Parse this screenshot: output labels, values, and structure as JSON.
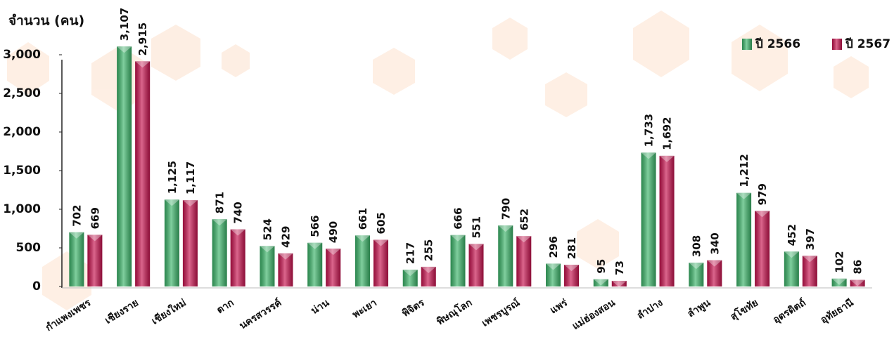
{
  "chart_data": {
    "type": "bar",
    "y_label": "จำนวน (คน)",
    "categories": [
      "กำแพงเพชร",
      "เชียงราย",
      "เชียงใหม่",
      "ตาก",
      "นครสวรรค์",
      "น่าน",
      "พะเยา",
      "พิจิตร",
      "พิษณุโลก",
      "เพชรบูรณ์",
      "แพร่",
      "แม่ฮ่องสอน",
      "ลำปาง",
      "ลำพูน",
      "สุโขทัย",
      "อุตรดิตถ์",
      "อุทัยธานี"
    ],
    "series": [
      {
        "name": "ปี 2566",
        "color": "#3cb56a",
        "values": [
          702,
          3107,
          1125,
          871,
          524,
          566,
          661,
          217,
          666,
          790,
          296,
          95,
          1733,
          308,
          1212,
          452,
          102
        ],
        "value_labels": [
          "702",
          "3,107",
          "1,125",
          "871",
          "524",
          "566",
          "661",
          "217",
          "666",
          "790",
          "296",
          "95",
          "1,733",
          "308",
          "1,212",
          "452",
          "102"
        ]
      },
      {
        "name": "ปี 2567",
        "color": "#c8134f",
        "values": [
          669,
          2915,
          1117,
          740,
          429,
          490,
          605,
          255,
          551,
          652,
          281,
          73,
          1692,
          340,
          979,
          397,
          86
        ],
        "value_labels": [
          "669",
          "2,915",
          "1,117",
          "740",
          "429",
          "490",
          "605",
          "255",
          "551",
          "652",
          "281",
          "73",
          "1,692",
          "340",
          "979",
          "397",
          "86"
        ]
      }
    ],
    "ylim": [
      0,
      3200
    ],
    "yticks": [
      0,
      500,
      {
        "value": 1000,
        "label": "1,000"
      },
      {
        "value": 1500,
        "label": "1,500"
      },
      {
        "value": 2000,
        "label": "2,000"
      },
      {
        "value": 2500,
        "label": "2,500"
      },
      {
        "value": 3000,
        "label": "3,000"
      }
    ],
    "grid": false,
    "legend": "top-right"
  }
}
